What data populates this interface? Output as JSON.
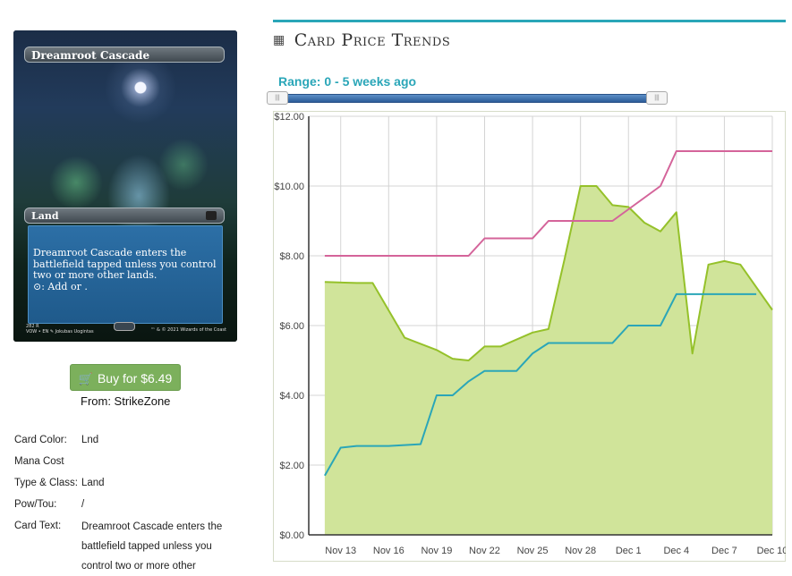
{
  "card": {
    "name": "Dreamroot Cascade",
    "type_line": "Land",
    "rules_text": "Dreamroot Cascade enters the battlefield tapped unless you control two or more other lands.",
    "mana_ability": ": Add  or .",
    "collector_number": "282",
    "rarity": "R",
    "set_lang": "VOW • EN",
    "artist": "Jokubas Uogintas",
    "copyright": "™ & © 2021 Wizards of the Coast"
  },
  "buy": {
    "label": "Buy for $6.49",
    "from": "From: StrikeZone"
  },
  "details": [
    {
      "label": "Card Color:",
      "value": "Lnd"
    },
    {
      "label": "Mana Cost",
      "value": ""
    },
    {
      "label": "Type & Class:",
      "value": "Land"
    },
    {
      "label": "Pow/Tou:",
      "value": "/"
    },
    {
      "label": "Card Text:",
      "value": "Dreamroot Cascade enters the battlefield tapped unless you control two or more other"
    }
  ],
  "section": {
    "title": "Card Price Trends",
    "range_label": "Range: 0 - 5 weeks ago",
    "icon": "calendar-icon"
  },
  "chart_data": {
    "type": "line",
    "title": "",
    "xlabel": "",
    "ylabel": "",
    "ylim": [
      0,
      12
    ],
    "yticks": [
      "$0.00",
      "$2.00",
      "$4.00",
      "$6.00",
      "$8.00",
      "$10.00",
      "$12.00"
    ],
    "xlim": [
      "Nov 11",
      "Dec 10"
    ],
    "xticks": [
      "Nov 13",
      "Nov 16",
      "Nov 19",
      "Nov 22",
      "Nov 25",
      "Nov 28",
      "Dec 1",
      "Dec 4",
      "Dec 7",
      "Dec 10"
    ],
    "grid": true,
    "colors": {
      "area": "#d0e49a",
      "area_line": "#95c12a",
      "teal": "#2aa6b8",
      "pink": "#d4649a"
    },
    "series": [
      {
        "style": "area",
        "points": [
          [
            "Nov 12",
            7.25
          ],
          [
            "Nov 14",
            7.22
          ],
          [
            "Nov 15",
            7.22
          ],
          [
            "Nov 17",
            5.65
          ],
          [
            "Nov 19",
            5.3
          ],
          [
            "Nov 20",
            5.05
          ],
          [
            "Nov 21",
            5.0
          ],
          [
            "Nov 22",
            5.4
          ],
          [
            "Nov 23",
            5.4
          ],
          [
            "Nov 25",
            5.8
          ],
          [
            "Nov 26",
            5.9
          ],
          [
            "Nov 27",
            7.9
          ],
          [
            "Nov 28",
            10.0
          ],
          [
            "Nov 29",
            10.0
          ],
          [
            "Nov 30",
            9.45
          ],
          [
            "Dec 1",
            9.4
          ],
          [
            "Dec 2",
            8.95
          ],
          [
            "Dec 3",
            8.7
          ],
          [
            "Dec 4",
            9.25
          ],
          [
            "Dec 5",
            5.2
          ],
          [
            "Dec 6",
            7.75
          ],
          [
            "Dec 7",
            7.85
          ],
          [
            "Dec 8",
            7.75
          ],
          [
            "Dec 10",
            6.45
          ]
        ]
      },
      {
        "style": "line",
        "points": [
          [
            "Nov 12",
            1.7
          ],
          [
            "Nov 13",
            2.5
          ],
          [
            "Nov 14",
            2.55
          ],
          [
            "Nov 16",
            2.55
          ],
          [
            "Nov 18",
            2.6
          ],
          [
            "Nov 19",
            4.0
          ],
          [
            "Nov 20",
            4.0
          ],
          [
            "Nov 21",
            4.4
          ],
          [
            "Nov 22",
            4.7
          ],
          [
            "Nov 24",
            4.7
          ],
          [
            "Nov 25",
            5.2
          ],
          [
            "Nov 26",
            5.5
          ],
          [
            "Nov 28",
            5.5
          ],
          [
            "Nov 30",
            5.5
          ],
          [
            "Dec 1",
            6.0
          ],
          [
            "Dec 3",
            6.0
          ],
          [
            "Dec 4",
            6.9
          ],
          [
            "Dec 9",
            6.9
          ]
        ]
      },
      {
        "style": "line",
        "points": [
          [
            "Nov 12",
            8.0
          ],
          [
            "Nov 21",
            8.0
          ],
          [
            "Nov 22",
            8.5
          ],
          [
            "Nov 25",
            8.5
          ],
          [
            "Nov 26",
            9.0
          ],
          [
            "Nov 30",
            9.0
          ],
          [
            "Dec 3",
            10.0
          ],
          [
            "Dec 4",
            11.0
          ],
          [
            "Dec 10",
            11.0
          ]
        ]
      }
    ]
  }
}
